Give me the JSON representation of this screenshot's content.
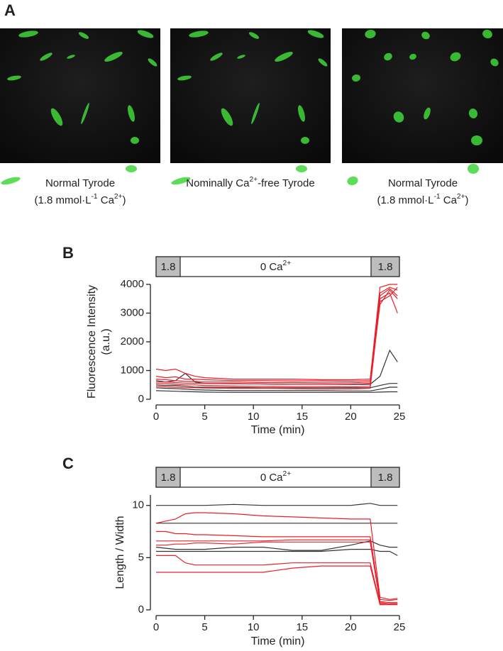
{
  "panel_a": {
    "label": "A",
    "captions": [
      [
        [
          {
            "text": "Normal Tyrode"
          }
        ],
        [
          {
            "text": "(1.8 mmol·L",
            "sup": "-1"
          },
          {
            "text": " Ca",
            "sup": "2+"
          },
          {
            "text": ")"
          }
        ]
      ],
      [
        [
          {
            "text": "Nominally Ca",
            "sup": "2+"
          },
          {
            "text": "-free Tyrode"
          }
        ]
      ],
      [
        [
          {
            "text": "Normal Tyrode"
          }
        ],
        [
          {
            "text": "(1.8 mmol·L",
            "sup": "-1"
          },
          {
            "text": " Ca",
            "sup": "2+"
          },
          {
            "text": ")"
          }
        ]
      ]
    ]
  },
  "chart_data": [
    {
      "type": "line",
      "panel_label": "B",
      "conditions": [
        {
          "text": "1.8"
        },
        {
          "text": "0 Ca",
          "sup": "2+"
        },
        {
          "text": "1.8"
        }
      ],
      "x_label": "Time (min)",
      "y_label": [
        "Fluorescence Intensity",
        "(a.u.)"
      ],
      "xlim": [
        0,
        25
      ],
      "xticks": [
        0,
        5,
        10,
        15,
        20,
        25
      ],
      "ylim": [
        0,
        4000
      ],
      "yticks": [
        0,
        1000,
        2000,
        3000,
        4000
      ],
      "x": [
        0,
        1,
        2,
        3,
        4,
        5,
        8,
        11,
        14,
        17,
        20,
        22,
        23,
        24,
        24.8
      ],
      "series": [
        {
          "color": "#333333",
          "values": [
            650,
            600,
            650,
            900,
            600,
            550,
            550,
            530,
            520,
            520,
            510,
            520,
            800,
            1700,
            1300
          ]
        },
        {
          "color": "#333333",
          "values": [
            500,
            480,
            480,
            450,
            420,
            420,
            410,
            400,
            400,
            400,
            400,
            400,
            480,
            550,
            550
          ]
        },
        {
          "color": "#333333",
          "values": [
            400,
            380,
            370,
            350,
            330,
            320,
            300,
            300,
            300,
            300,
            290,
            290,
            350,
            420,
            420
          ]
        },
        {
          "color": "#333333",
          "values": [
            300,
            290,
            280,
            270,
            260,
            250,
            240,
            240,
            240,
            240,
            240,
            240,
            250,
            260,
            260
          ]
        },
        {
          "color": "#e8202a",
          "values": [
            1050,
            1000,
            1050,
            900,
            800,
            750,
            700,
            700,
            700,
            680,
            680,
            700,
            3900,
            4000,
            4000
          ]
        },
        {
          "color": "#e8202a",
          "values": [
            800,
            750,
            780,
            700,
            700,
            680,
            650,
            650,
            640,
            640,
            630,
            650,
            3700,
            3900,
            3800
          ]
        },
        {
          "color": "#e8202a",
          "values": [
            700,
            680,
            650,
            620,
            620,
            600,
            600,
            580,
            580,
            570,
            570,
            600,
            3500,
            3700,
            3000
          ]
        },
        {
          "color": "#e8202a",
          "values": [
            600,
            600,
            580,
            560,
            560,
            550,
            540,
            530,
            520,
            520,
            520,
            550,
            3300,
            3800,
            3500
          ]
        },
        {
          "color": "#e8202a",
          "values": [
            550,
            540,
            520,
            500,
            500,
            480,
            460,
            450,
            440,
            440,
            430,
            450,
            3600,
            3850,
            3600
          ]
        },
        {
          "color": "#e8202a",
          "values": [
            450,
            430,
            420,
            400,
            400,
            390,
            380,
            380,
            370,
            360,
            360,
            380,
            3400,
            3600,
            3900
          ]
        }
      ]
    },
    {
      "type": "line",
      "panel_label": "C",
      "conditions": [
        {
          "text": "1.8"
        },
        {
          "text": "0 Ca",
          "sup": "2+"
        },
        {
          "text": "1.8"
        }
      ],
      "x_label": "Time (min)",
      "y_label": [
        "Length / Width"
      ],
      "xlim": [
        0,
        25
      ],
      "xticks": [
        0,
        5,
        10,
        15,
        20,
        25
      ],
      "ylim": [
        0,
        11
      ],
      "yticks": [
        0,
        5,
        10
      ],
      "x": [
        0,
        1,
        2,
        3,
        4,
        5,
        8,
        11,
        14,
        17,
        20,
        22,
        23,
        24,
        24.8
      ],
      "series": [
        {
          "color": "#333333",
          "values": [
            10.0,
            10.0,
            10.0,
            10.0,
            10.0,
            10.0,
            10.1,
            10.0,
            10.0,
            10.0,
            10.0,
            10.2,
            10.0,
            10.0,
            10.0
          ]
        },
        {
          "color": "#333333",
          "values": [
            8.3,
            8.3,
            8.3,
            8.3,
            8.3,
            8.3,
            8.3,
            8.3,
            8.3,
            8.3,
            8.3,
            8.3,
            8.3,
            8.3,
            8.3
          ]
        },
        {
          "color": "#333333",
          "values": [
            6.0,
            5.9,
            5.8,
            5.8,
            5.8,
            5.8,
            6.0,
            6.0,
            5.7,
            5.7,
            6.2,
            6.6,
            6.2,
            6.0,
            6.0
          ]
        },
        {
          "color": "#333333",
          "values": [
            5.6,
            5.6,
            5.6,
            5.6,
            5.6,
            5.6,
            5.6,
            5.6,
            5.6,
            5.6,
            5.8,
            5.8,
            5.6,
            5.6,
            5.2
          ]
        },
        {
          "color": "#e8202a",
          "values": [
            8.3,
            8.5,
            8.7,
            9.2,
            9.3,
            9.3,
            9.2,
            9.0,
            8.9,
            8.8,
            8.7,
            8.7,
            1.2,
            1.0,
            1.1
          ]
        },
        {
          "color": "#e8202a",
          "values": [
            7.5,
            7.5,
            7.3,
            7.3,
            7.2,
            7.2,
            7.1,
            7.0,
            7.0,
            7.0,
            7.0,
            7.0,
            1.0,
            0.9,
            1.0
          ]
        },
        {
          "color": "#e8202a",
          "values": [
            6.6,
            6.6,
            6.6,
            6.6,
            6.6,
            6.6,
            6.6,
            6.6,
            6.7,
            6.7,
            6.7,
            6.7,
            0.8,
            0.7,
            0.7
          ]
        },
        {
          "color": "#e8202a",
          "values": [
            6.2,
            6.2,
            6.3,
            6.3,
            6.4,
            6.4,
            6.3,
            6.5,
            6.5,
            6.5,
            6.5,
            6.5,
            0.7,
            0.6,
            0.6
          ]
        },
        {
          "color": "#e8202a",
          "values": [
            5.2,
            5.2,
            5.2,
            4.5,
            4.3,
            4.3,
            4.3,
            4.3,
            4.5,
            4.5,
            4.5,
            4.5,
            0.6,
            0.6,
            0.6
          ]
        },
        {
          "color": "#e8202a",
          "values": [
            3.6,
            3.6,
            3.6,
            3.6,
            3.6,
            3.6,
            3.6,
            3.6,
            4.0,
            4.2,
            4.2,
            4.2,
            0.5,
            0.5,
            0.5
          ]
        }
      ]
    }
  ]
}
